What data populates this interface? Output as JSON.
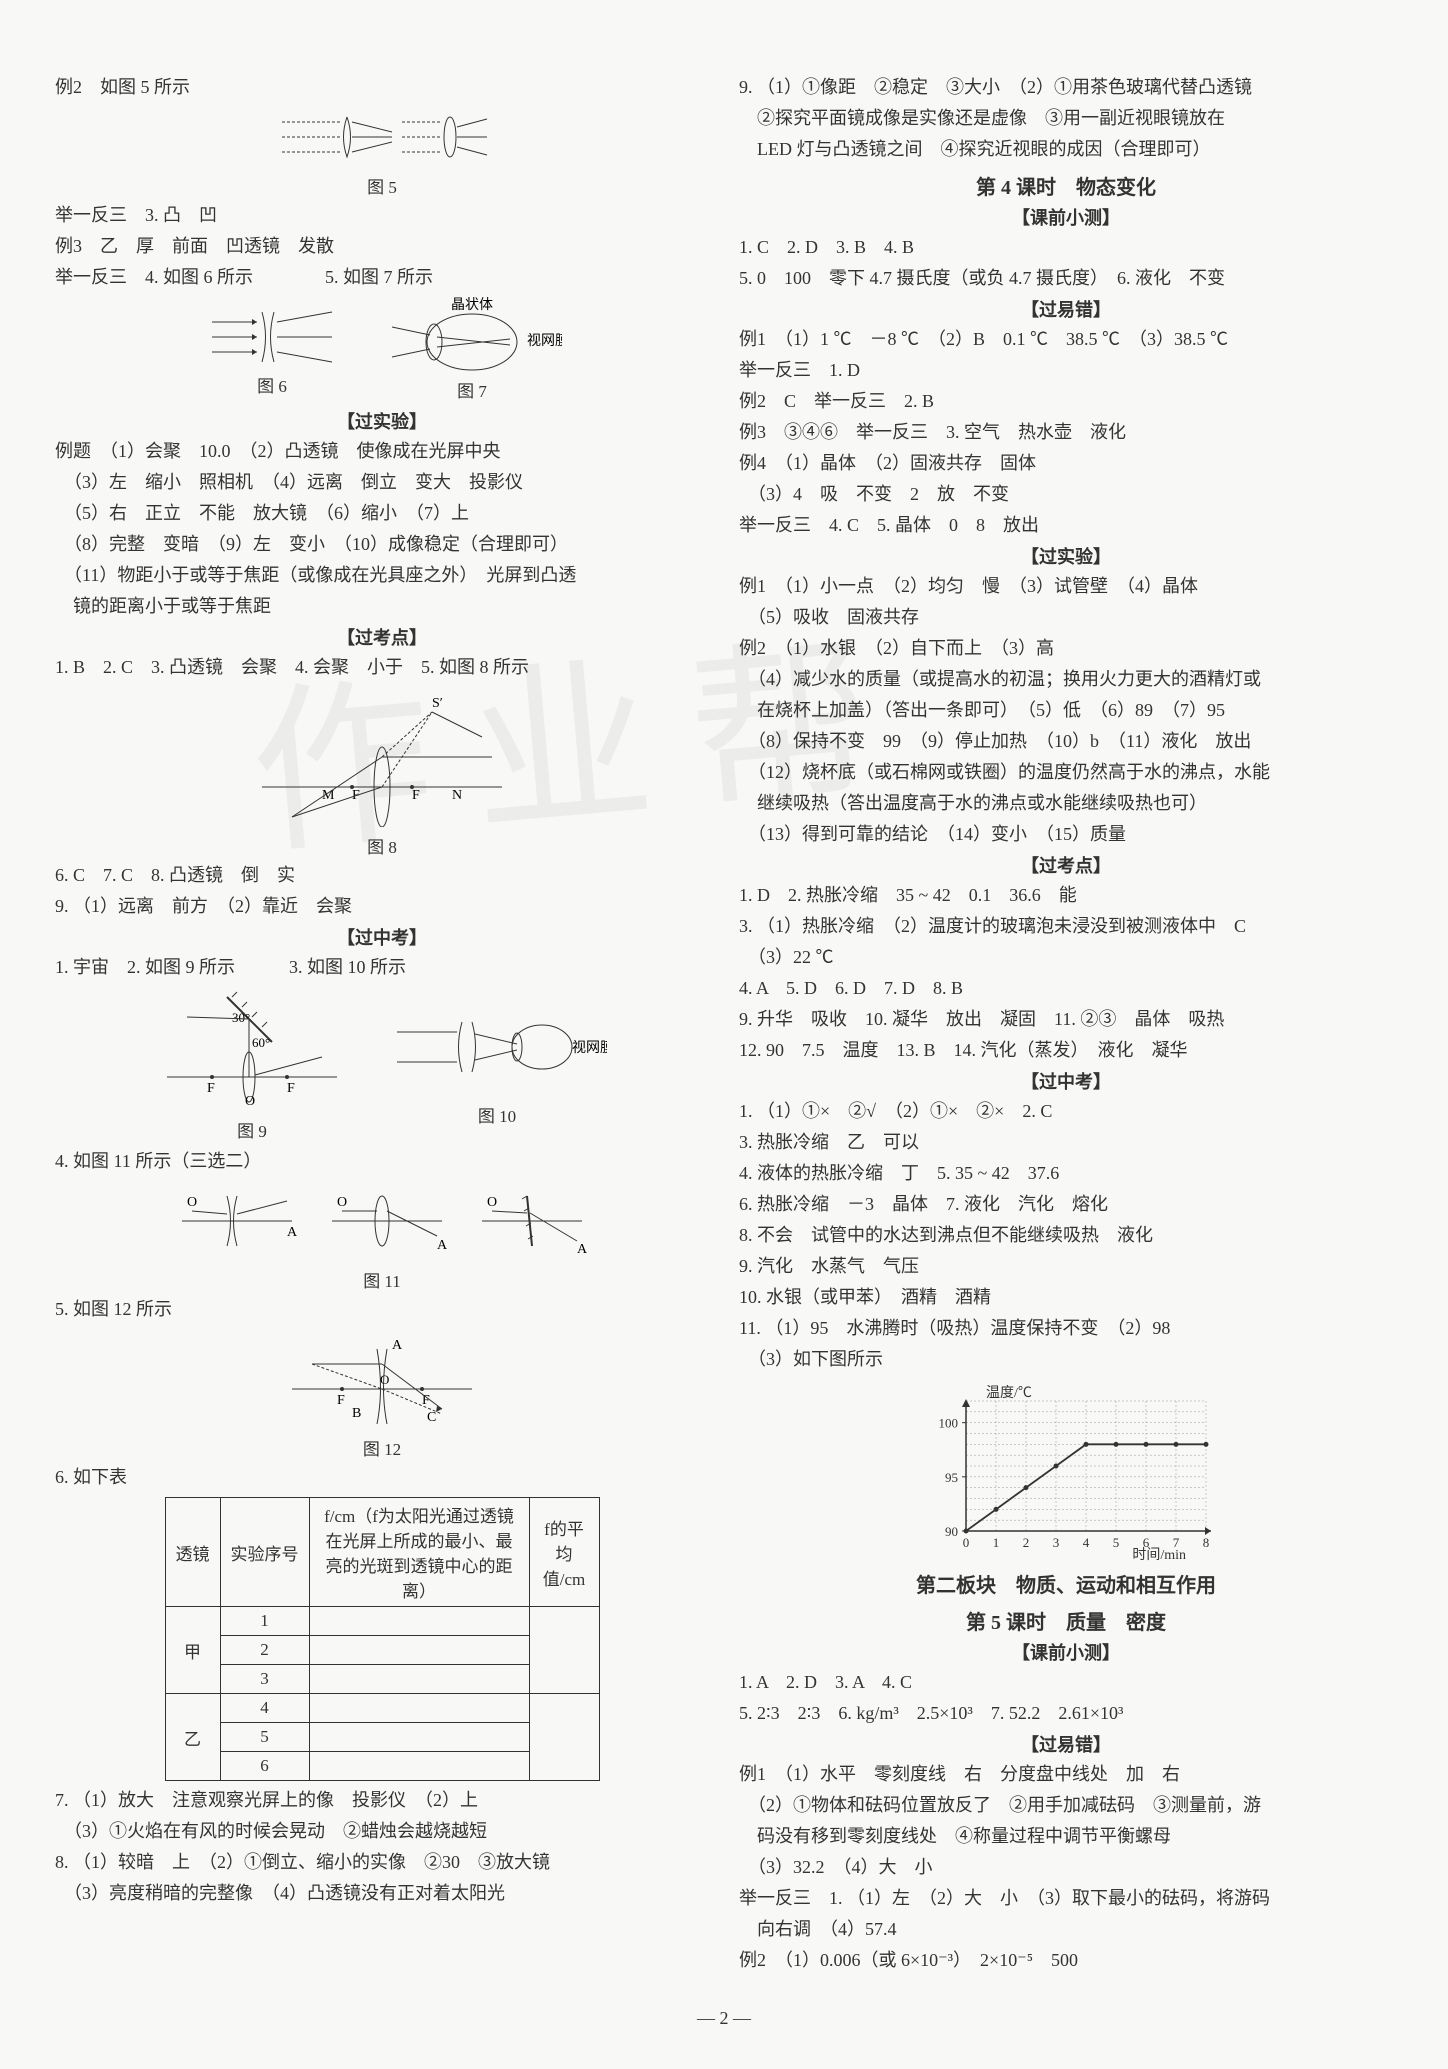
{
  "left": {
    "l01": "例2　如图 5 所示",
    "fig5_label": "图 5",
    "l02": "举一反三　3. 凸　凹",
    "l03": "例3　乙　厚　前面　凹透镜　发散",
    "l04": "举一反三　4. 如图 6 所示　　　　5. 如图 7 所示",
    "fig7_text1": "晶状体",
    "fig7_text2": "视网膜",
    "fig6_label": "图 6",
    "fig7_label": "图 7",
    "sec_exp": "【过实验】",
    "l05": "例题　（1）会聚　10.0　（2）凸透镜　使像成在光屏中央",
    "l06": "　（3）左　缩小　照相机　（4）远离　倒立　变大　投影仪",
    "l07": "　（5）右　正立　不能　放大镜　（6）缩小　（7）上",
    "l08": "　（8）完整　变暗　（9）左　变小　（10）成像稳定（合理即可）",
    "l09": "　（11）物距小于或等于焦距（或像成在光具座之外）　光屏到凸透",
    "l10": "　镜的距离小于或等于焦距",
    "sec_kaodian": "【过考点】",
    "l11": "1. B　2. C　3. 凸透镜　会聚　4. 会聚　小于　5. 如图 8 所示",
    "fig8_label": "图 8",
    "fig8_S": "S′",
    "fig8_M": "M",
    "fig8_F": "F",
    "fig8_N": "N",
    "l12": "6. C　7. C　8. 凸透镜　倒　实",
    "l13": "9. （1）远离　前方　（2）靠近　会聚",
    "sec_zhongkao": "【过中考】",
    "l14": "1. 宇宙　2. 如图 9 所示　　　3. 如图 10 所示",
    "fig9_ang1": "30°",
    "fig9_ang2": "60°",
    "fig9_F": "F",
    "fig9_O": "O",
    "fig10_text": "视网膜",
    "fig9_label": "图 9",
    "fig10_label": "图 10",
    "l15": "4. 如图 11 所示（三选二）",
    "fig11_O": "O",
    "fig11_A": "A",
    "fig11_label": "图 11",
    "l16": "5. 如图 12 所示",
    "fig12_A": "A",
    "fig12_B": "B",
    "fig12_C": "C",
    "fig12_F": "F",
    "fig12_O": "O",
    "fig12_label": "图 12",
    "l17": "6. 如下表",
    "table": {
      "h_lens": "透镜",
      "h_seq": "实验序号",
      "h_f": "f/cm（f为太阳光通过透镜在光屏上所成的最小、最亮的光斑到透镜中心的距离）",
      "h_avg": "f的平均值/cm",
      "jia": "甲",
      "yi": "乙",
      "r1": "1",
      "r2": "2",
      "r3": "3",
      "r4": "4",
      "r5": "5",
      "r6": "6"
    },
    "l18": "7. （1）放大　注意观察光屏上的像　投影仪　（2）上",
    "l19": "　（3）①火焰在有风的时候会晃动　②蜡烛会越烧越短",
    "l20": "8. （1）较暗　上　（2）①倒立、缩小的实像　②30　③放大镜",
    "l21": "　（3）亮度稍暗的完整像　（4）凸透镜没有正对着太阳光"
  },
  "right": {
    "r01": "9. （1）①像距　②稳定　③大小　（2）①用茶色玻璃代替凸透镜",
    "r02": "　②探究平面镜成像是实像还是虚像　③用一副近视眼镜放在",
    "r03": "　LED 灯与凸透镜之间　④探究近视眼的成因（合理即可）",
    "sec4_title": "第 4 课时　物态变化",
    "sec_keqian": "【课前小测】",
    "r04": "1. C　2. D　3. B　4. B",
    "r05": "5. 0　100　零下 4.7 摄氏度（或负 4.7 摄氏度）　6. 液化　不变",
    "sec_yicuo": "【过易错】",
    "r06": "例1　（1）1 ℃　－8 ℃　（2）B　0.1 ℃　38.5 ℃　（3）38.5 ℃",
    "r07": "举一反三　1. D",
    "r08": "例2　C　举一反三　2. B",
    "r09": "例3　③④⑥　举一反三　3. 空气　热水壶　液化",
    "r10": "例4　（1）晶体　（2）固液共存　固体",
    "r11": "　（3）4　吸　不变　2　放　不变",
    "r12": "举一反三　4. C　5. 晶体　0　8　放出",
    "sec_shiyan2": "【过实验】",
    "r13": "例1　（1）小一点　（2）均匀　慢　（3）试管壁　（4）晶体",
    "r14": "　（5）吸收　固液共存",
    "r15": "例2　（1）水银　（2）自下而上　（3）高",
    "r16": "　（4）减少水的质量（或提高水的初温；换用火力更大的酒精灯或",
    "r17": "　在烧杯上加盖）（答出一条即可）　（5）低　（6）89　（7）95",
    "r18": "　（8）保持不变　99　（9）停止加热　（10）b　（11）液化　放出",
    "r19": "　（12）烧杯底（或石棉网或铁圈）的温度仍然高于水的沸点，水能",
    "r20": "　继续吸热（答出温度高于水的沸点或水能继续吸热也可）",
    "r21": "　（13）得到可靠的结论　（14）变小　（15）质量",
    "sec_kaodian2": "【过考点】",
    "r22": "1. D　2. 热胀冷缩　35 ~ 42　0.1　36.6　能",
    "r23": "3. （1）热胀冷缩　（2）温度计的玻璃泡未浸没到被测液体中　C",
    "r24": "　（3）22 ℃",
    "r25": "4. A　5. D　6. D　7. D　8. B",
    "r26": "9. 升华　吸收　10. 凝华　放出　凝固　11. ②③　晶体　吸热",
    "r27": "12. 90　7.5　温度　13. B　14. 汽化（蒸发）　液化　凝华",
    "sec_zhongkao2": "【过中考】",
    "r28": "1. （1）①×　②√　（2）①×　②×　2. C",
    "r29": "3. 热胀冷缩　乙　可以",
    "r30": "4. 液体的热胀冷缩　丁　5. 35 ~ 42　37.6",
    "r31": "6. 热胀冷缩　－3　晶体　7. 液化　汽化　熔化",
    "r32": "8. 不会　试管中的水达到沸点但不能继续吸热　液化",
    "r33": "9. 汽化　水蒸气　气压",
    "r34": "10. 水银（或甲苯）　酒精　酒精",
    "r35": "11. （1）95　水沸腾时（吸热）温度保持不变　（2）98",
    "r36": "　（3）如下图所示",
    "graph": {
      "ylabel": "温度/℃",
      "xlabel": "时间/min",
      "yticks": [
        "90",
        "95",
        "100"
      ],
      "xticks": [
        "0",
        "1",
        "2",
        "3",
        "4",
        "5",
        "6",
        "7",
        "8"
      ],
      "ylim": [
        90,
        102
      ],
      "xlim": [
        0,
        8
      ],
      "series_color": "#333333",
      "grid_color": "#999999",
      "points": [
        [
          0,
          90
        ],
        [
          1,
          92
        ],
        [
          2,
          94
        ],
        [
          3,
          96
        ],
        [
          4,
          98
        ],
        [
          5,
          98
        ],
        [
          6,
          98
        ],
        [
          7,
          98
        ],
        [
          8,
          98
        ]
      ]
    },
    "block2_title": "第二板块　物质、运动和相互作用",
    "sec5_title": "第 5 课时　质量　密度",
    "sec_keqian2": "【课前小测】",
    "r37": "1. A　2. D　3. A　4. C",
    "r38": "5. 2∶3　2∶3　6. kg/m³　2.5×10³　7. 52.2　2.61×10³",
    "sec_yicuo2": "【过易错】",
    "r39": "例1　（1）水平　零刻度线　右　分度盘中线处　加　右",
    "r40": "　（2）①物体和砝码位置放反了　②用手加减砝码　③测量前，游",
    "r41": "　码没有移到零刻度线处　④称量过程中调节平衡螺母",
    "r42": "　（3）32.2　（4）大　小",
    "r43": "举一反三　1. （1）左　（2）大　小　（3）取下最小的砝码，将游码",
    "r44": "　向右调　（4）57.4",
    "r45": "例2　（1）0.006（或 6×10⁻³）　2×10⁻⁵　500"
  },
  "pagenum": "— 2 —"
}
